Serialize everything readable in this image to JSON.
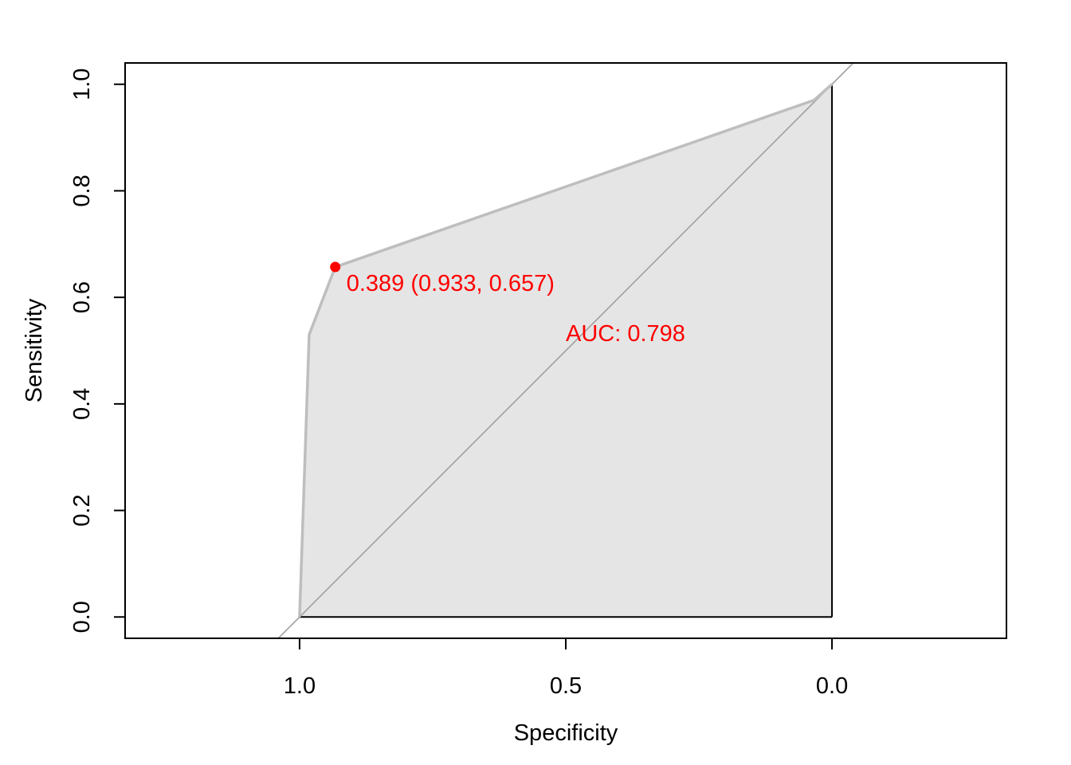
{
  "chart_data": {
    "type": "line",
    "title": "",
    "xlabel": "Specificity",
    "ylabel": "Sensitivity",
    "x_reversed": true,
    "xlim": [
      1.3277,
      -0.3277
    ],
    "ylim": [
      -0.04,
      1.04
    ],
    "x_ticks": [
      1.0,
      0.5,
      0.0
    ],
    "x_tick_labels": [
      "1.0",
      "0.5",
      "0.0"
    ],
    "y_ticks": [
      0.0,
      0.2,
      0.4,
      0.6,
      0.8,
      1.0
    ],
    "y_tick_labels": [
      "0.0",
      "0.2",
      "0.4",
      "0.6",
      "0.8",
      "1.0"
    ],
    "grid": false,
    "series": [
      {
        "specificity": [
          1.0,
          0.982,
          0.933,
          0.034,
          0.0
        ],
        "sensitivity": [
          0.0,
          0.53,
          0.657,
          0.97,
          1.0
        ]
      }
    ],
    "auc_polygon": true,
    "diagonal": true,
    "best_threshold": {
      "specificity": 0.933,
      "sensitivity": 0.657,
      "label": "0.389 (0.933, 0.657)"
    },
    "auc_label": "AUC: 0.798",
    "colors": {
      "curve": "#bebebe",
      "fill": "#e5e5e5",
      "diagonal": "#a0a0a0",
      "annotation": "#ff0000",
      "axis": "#000000"
    }
  }
}
